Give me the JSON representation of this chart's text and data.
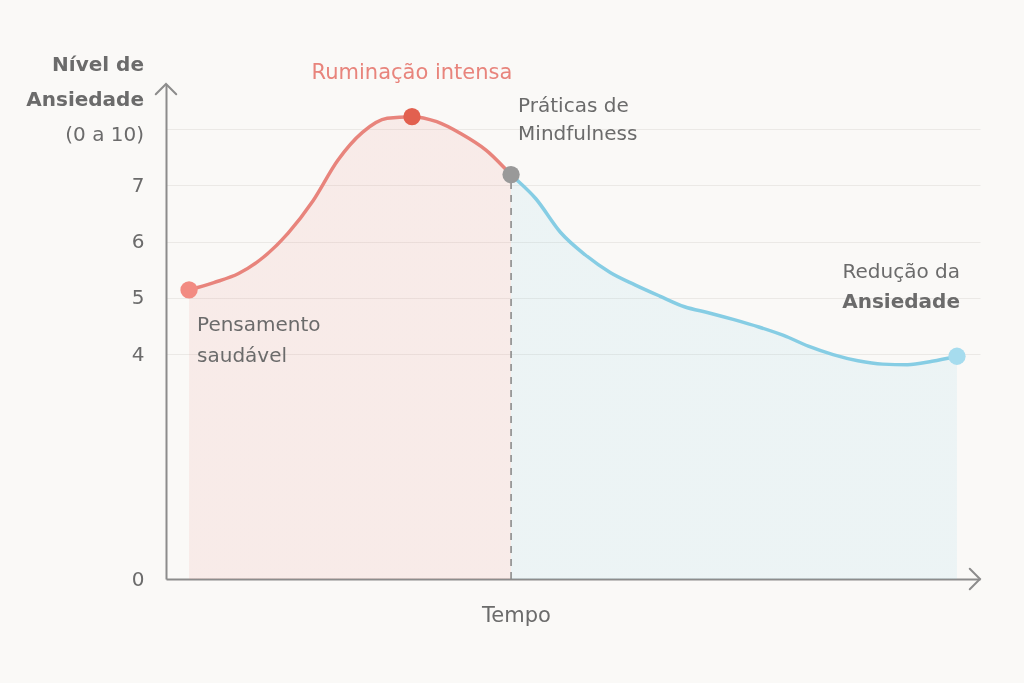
{
  "chart_data": {
    "type": "area",
    "xlabel": "Tempo",
    "ylabel": "Nível de Ansiedade (0 a 10)",
    "categories": [
      null,
      null,
      null,
      null,
      null,
      null,
      null,
      null,
      null,
      null,
      null,
      null,
      null,
      null,
      null,
      null,
      null,
      null,
      null,
      null,
      null,
      null,
      null,
      null,
      null,
      null,
      null,
      null,
      null,
      null,
      null,
      null
    ],
    "ylim": [
      0,
      8.8
    ],
    "yticks": [
      0,
      4,
      5,
      6,
      7,
      {
        "value": 8,
        "label": null
      }
    ],
    "grid": "y",
    "tick_labels": "y",
    "series": [
      {
        "colors": [
          "#e8847c",
          "#e8847c",
          "#e8847c",
          "#e8847c",
          "#e8847c",
          "#e8847c",
          "#e8847c",
          "#e8847c",
          "#e8847c",
          "#e8847c",
          "#e8847c",
          "#e8847c",
          "#e8847c",
          "#86cde4",
          "#86cde4",
          "#86cde4",
          "#86cde4",
          "#86cde4",
          "#86cde4",
          "#86cde4",
          "#86cde4",
          "#86cde4",
          "#86cde4",
          "#86cde4",
          "#86cde4",
          "#86cde4",
          "#86cde4",
          "#86cde4",
          "#86cde4",
          "#86cde4",
          "#86cde4",
          "#86cde4"
        ],
        "values": [
          5.14,
          5.27,
          5.43,
          5.72,
          6.15,
          6.72,
          7.44,
          7.94,
          8.19,
          8.22,
          8.13,
          7.91,
          7.62,
          7.19,
          6.76,
          6.16,
          5.76,
          5.45,
          5.23,
          5.03,
          4.84,
          4.73,
          4.61,
          4.48,
          4.33,
          4.14,
          3.99,
          3.88,
          3.82,
          3.81,
          3.87,
          3.96
        ]
      },
      {
        "type": "scatter",
        "values": [
          5.14,
          null,
          null,
          null,
          null,
          null,
          null,
          null,
          null,
          8.22,
          null,
          null,
          null,
          7.19,
          null,
          null,
          null,
          null,
          null,
          null,
          null,
          null,
          null,
          null,
          null,
          null,
          null,
          null,
          null,
          null,
          null,
          3.96
        ],
        "colors": [
          "#f28b82",
          null,
          null,
          null,
          null,
          null,
          null,
          null,
          null,
          "#e2604f",
          null,
          null,
          null,
          "#999999",
          null,
          null,
          null,
          null,
          null,
          null,
          null,
          null,
          null,
          null,
          null,
          null,
          null,
          null,
          null,
          null,
          null,
          "#a6dcee"
        ]
      }
    ],
    "annotations": [
      "Pensamento saudável",
      "Ruminação intensa",
      "Práticas de Mindfulness",
      "Redução da Ansiedade"
    ]
  }
}
